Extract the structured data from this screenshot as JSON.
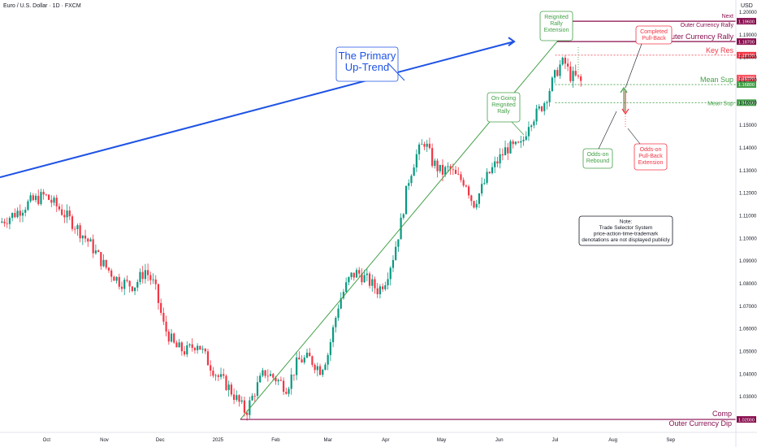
{
  "header": {
    "ticker": "Euro / U.S. Dollar · 1D · FXCM",
    "currency": "USD"
  },
  "chart_data": {
    "type": "candlestick",
    "y_axis": {
      "min": 1.015,
      "max": 1.2025,
      "ticks": [
        "1.20000",
        "1.19000",
        "1.18000",
        "1.17000",
        "1.16000",
        "1.15000",
        "1.14000",
        "1.13000",
        "1.12000",
        "1.11000",
        "1.10000",
        "1.09000",
        "1.08000",
        "1.07000",
        "1.06000",
        "1.05000",
        "1.04000",
        "1.03000"
      ]
    },
    "x_axis": {
      "ticks": [
        {
          "label": "Oct",
          "day": 5
        },
        {
          "label": "Nov",
          "day": 36
        },
        {
          "label": "Dec",
          "day": 66
        },
        {
          "label": "2025",
          "day": 97
        },
        {
          "label": "Feb",
          "day": 128
        },
        {
          "label": "Mar",
          "day": 156
        },
        {
          "label": "Apr",
          "day": 187
        },
        {
          "label": "May",
          "day": 217
        },
        {
          "label": "Jun",
          "day": 248
        },
        {
          "label": "Jul",
          "day": 278
        },
        {
          "label": "Aug",
          "day": 309
        },
        {
          "label": "Sep",
          "day": 340
        }
      ],
      "day_range": [
        -20,
        375
      ]
    },
    "price_path": [
      [
        -20,
        1.107
      ],
      [
        -12,
        1.111
      ],
      [
        -4,
        1.116
      ],
      [
        4,
        1.119
      ],
      [
        12,
        1.113
      ],
      [
        20,
        1.106
      ],
      [
        28,
        1.098
      ],
      [
        36,
        1.088
      ],
      [
        44,
        1.081
      ],
      [
        52,
        1.079
      ],
      [
        58,
        1.086
      ],
      [
        63,
        1.079
      ],
      [
        68,
        1.061
      ],
      [
        74,
        1.052
      ],
      [
        80,
        1.05
      ],
      [
        86,
        1.054
      ],
      [
        92,
        1.045
      ],
      [
        97,
        1.039
      ],
      [
        102,
        1.035
      ],
      [
        107,
        1.029
      ],
      [
        112,
        1.023
      ],
      [
        117,
        1.033
      ],
      [
        122,
        1.041
      ],
      [
        128,
        1.038
      ],
      [
        134,
        1.034
      ],
      [
        140,
        1.046
      ],
      [
        146,
        1.047
      ],
      [
        152,
        1.042
      ],
      [
        156,
        1.049
      ],
      [
        162,
        1.072
      ],
      [
        168,
        1.083
      ],
      [
        172,
        1.085
      ],
      [
        178,
        1.081
      ],
      [
        183,
        1.077
      ],
      [
        187,
        1.082
      ],
      [
        191,
        1.092
      ],
      [
        195,
        1.106
      ],
      [
        199,
        1.125
      ],
      [
        203,
        1.136
      ],
      [
        208,
        1.143
      ],
      [
        212,
        1.134
      ],
      [
        217,
        1.129
      ],
      [
        221,
        1.131
      ],
      [
        225,
        1.127
      ],
      [
        230,
        1.125
      ],
      [
        234,
        1.115
      ],
      [
        238,
        1.121
      ],
      [
        242,
        1.128
      ],
      [
        247,
        1.134
      ],
      [
        252,
        1.14
      ],
      [
        256,
        1.14
      ],
      [
        260,
        1.141
      ],
      [
        264,
        1.152
      ],
      [
        268,
        1.155
      ],
      [
        272,
        1.16
      ],
      [
        276,
        1.168
      ],
      [
        280,
        1.176
      ],
      [
        283,
        1.178
      ],
      [
        286,
        1.172
      ],
      [
        289,
        1.171
      ],
      [
        292,
        1.169
      ]
    ],
    "levels": [
      {
        "label": "Next",
        "label2": "Outer Currency Rally",
        "value": "1.19600",
        "price": 1.196,
        "color": "#880e4f"
      },
      {
        "label": "Outer Currency Rally",
        "value": "1.18700",
        "price": 1.187,
        "color": "#880e4f"
      },
      {
        "label": "Key Res",
        "value": "1.18100",
        "price": 1.181,
        "color": "#f23645"
      },
      {
        "label": "Mean Sup",
        "value": "1.16800",
        "price": 1.168,
        "color": "#43a047",
        "extra": "1.16890"
      },
      {
        "label": "Mean Sup",
        "value": "1.16000",
        "price": 1.16,
        "color": "#43a047"
      },
      {
        "label": "Comp",
        "label2": "Outer Currency Dip",
        "value": "1.02000",
        "price": 1.02,
        "color": "#880e4f"
      }
    ],
    "trendlines": [
      {
        "name": "primary-uptrend",
        "from": [
          -20,
          1.127
        ],
        "to": [
          256,
          1.187
        ],
        "color": "#1e53e5"
      },
      {
        "name": "reignited-rally",
        "from": [
          109,
          1.02
        ],
        "to": [
          279,
          1.187
        ],
        "color": "#43a047"
      }
    ],
    "annotations": {
      "primary": [
        "The Primary",
        "Up-Trend"
      ],
      "ongoing": [
        "On-Going",
        "Reignited",
        "Rally"
      ],
      "reignited_ext": [
        "Reignited",
        "Rally",
        "Extension"
      ],
      "completed": [
        "Completed",
        "Pull-Back"
      ],
      "odds_rebound": [
        "Odds-on",
        "Rebound"
      ],
      "odds_pullback": [
        "Odds-on",
        "Pull-Back",
        "Extension"
      ],
      "note": [
        "Note:",
        "Trade Selector System",
        "price-action-time-trademark",
        "denotations are not displayed publicly"
      ]
    }
  },
  "colors": {
    "up": "#089981",
    "down": "#f23645",
    "axis_text": "#131722"
  }
}
